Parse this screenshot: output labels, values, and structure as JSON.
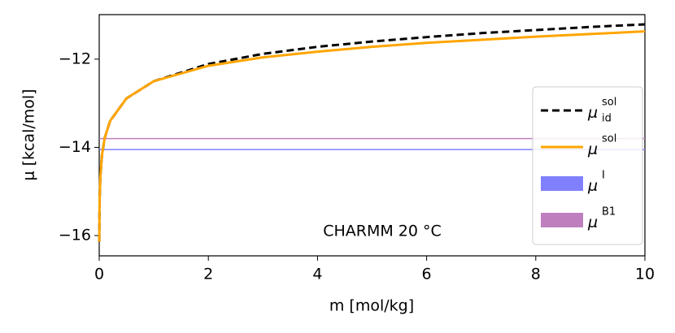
{
  "chart_data": {
    "type": "line",
    "xlabel": "m [mol/kg]",
    "ylabel": "μ [kcal/mol]",
    "annotation": "CHARMM 20 °C",
    "x": [
      0.0015,
      0.005,
      0.01,
      0.02,
      0.05,
      0.1,
      0.2,
      0.5,
      1,
      2,
      3,
      4,
      5,
      6,
      7,
      8,
      9,
      10
    ],
    "series": [
      {
        "name": "μ",
        "name_sub": "id",
        "name_sup": "sol",
        "color": "#000000",
        "dash": true,
        "values": [
          -16.14,
          -15.47,
          -15.08,
          -14.69,
          -14.18,
          -13.79,
          -13.4,
          -12.89,
          -12.5,
          -12.11,
          -11.88,
          -11.72,
          -11.6,
          -11.5,
          -11.41,
          -11.34,
          -11.27,
          -11.21
        ]
      },
      {
        "name": "μ",
        "name_sup": "sol",
        "color": "#ffa500",
        "dash": false,
        "values": [
          -16.14,
          -15.47,
          -15.08,
          -14.69,
          -14.18,
          -13.79,
          -13.4,
          -12.89,
          -12.5,
          -12.15,
          -11.96,
          -11.83,
          -11.72,
          -11.63,
          -11.56,
          -11.49,
          -11.43,
          -11.37
        ]
      }
    ],
    "hlines": [
      {
        "name": "μ",
        "name_sup": "I",
        "color": "#8080ff",
        "value": -14.05
      },
      {
        "name": "μ",
        "name_sup": "B1",
        "color": "#bf7fbf",
        "value": -13.8
      }
    ],
    "xlim": [
      0,
      10
    ],
    "xticks": [
      0,
      2,
      4,
      6,
      8,
      10
    ],
    "ylim": [
      -16.46,
      -10.99
    ],
    "yticks": [
      {
        "value": -16,
        "label": "−16"
      },
      {
        "value": -14,
        "label": "−14"
      },
      {
        "value": -12,
        "label": "−12"
      }
    ],
    "legend": "lower right"
  }
}
